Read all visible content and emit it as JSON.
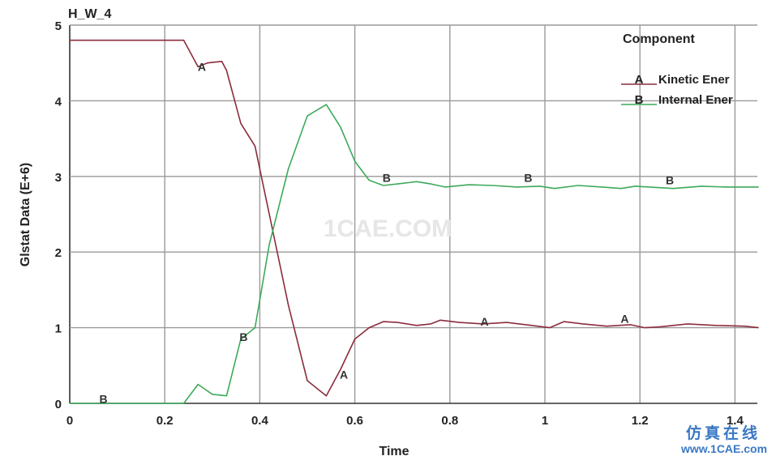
{
  "chart_data": {
    "type": "line",
    "title": "H_W_4",
    "xlabel": "Time",
    "ylabel": "Glstat Data (E+6)",
    "xlim": [
      0,
      1.45
    ],
    "ylim": [
      0,
      5
    ],
    "xticks": [
      "0",
      "0.2",
      "0.4",
      "0.6",
      "0.8",
      "1",
      "1.2",
      "1.4"
    ],
    "yticks": [
      "0",
      "1",
      "2",
      "3",
      "4",
      "5"
    ],
    "grid": true,
    "legend": {
      "title": "Component",
      "position": "top-right",
      "entries": [
        {
          "marker": "A",
          "label": "Kinetic Ener"
        },
        {
          "marker": "B",
          "label": "Internal Ener"
        }
      ]
    },
    "series": [
      {
        "marker": "A",
        "color": "#8b2c3c",
        "x": [
          0,
          0.24,
          0.27,
          0.29,
          0.32,
          0.33,
          0.36,
          0.39,
          0.42,
          0.46,
          0.5,
          0.54,
          0.57,
          0.6,
          0.63,
          0.66,
          0.69,
          0.73,
          0.76,
          0.78,
          0.82,
          0.87,
          0.92,
          0.96,
          1.01,
          1.04,
          1.08,
          1.13,
          1.18,
          1.21,
          1.24,
          1.3,
          1.36,
          1.42,
          1.45
        ],
        "y": [
          4.8,
          4.8,
          4.45,
          4.5,
          4.52,
          4.4,
          3.7,
          3.4,
          2.5,
          1.3,
          0.3,
          0.1,
          0.45,
          0.85,
          1.0,
          1.08,
          1.07,
          1.03,
          1.05,
          1.1,
          1.07,
          1.05,
          1.07,
          1.04,
          1.0,
          1.08,
          1.05,
          1.02,
          1.04,
          1.0,
          1.01,
          1.05,
          1.03,
          1.02,
          1.0
        ]
      },
      {
        "marker": "B",
        "color": "#3caa5a",
        "x": [
          0,
          0.24,
          0.27,
          0.3,
          0.33,
          0.36,
          0.39,
          0.42,
          0.46,
          0.5,
          0.54,
          0.57,
          0.6,
          0.63,
          0.66,
          0.69,
          0.73,
          0.76,
          0.79,
          0.84,
          0.89,
          0.94,
          0.99,
          1.02,
          1.07,
          1.12,
          1.16,
          1.19,
          1.22,
          1.27,
          1.33,
          1.38,
          1.45
        ],
        "y": [
          0,
          0,
          0.25,
          0.12,
          0.1,
          0.85,
          1.0,
          2.1,
          3.1,
          3.8,
          3.95,
          3.65,
          3.2,
          2.95,
          2.88,
          2.9,
          2.93,
          2.9,
          2.86,
          2.89,
          2.88,
          2.86,
          2.87,
          2.84,
          2.88,
          2.86,
          2.84,
          2.87,
          2.86,
          2.84,
          2.87,
          2.86,
          2.86
        ]
      }
    ],
    "point_labels": [
      {
        "series": "A",
        "x": 0.278,
        "y": 4.45
      },
      {
        "series": "A",
        "x": 0.577,
        "y": 0.38
      },
      {
        "series": "A",
        "x": 0.873,
        "y": 1.08
      },
      {
        "series": "A",
        "x": 1.168,
        "y": 1.12
      },
      {
        "series": "B",
        "x": 0.071,
        "y": 0.06
      },
      {
        "series": "B",
        "x": 0.366,
        "y": 0.88
      },
      {
        "series": "B",
        "x": 0.667,
        "y": 2.98
      },
      {
        "series": "B",
        "x": 0.965,
        "y": 2.98
      },
      {
        "series": "B",
        "x": 1.263,
        "y": 2.95
      }
    ]
  },
  "watermark": "1CAE.COM",
  "site_badge": {
    "cn": "仿真在线",
    "url": "www.1CAE.com"
  }
}
